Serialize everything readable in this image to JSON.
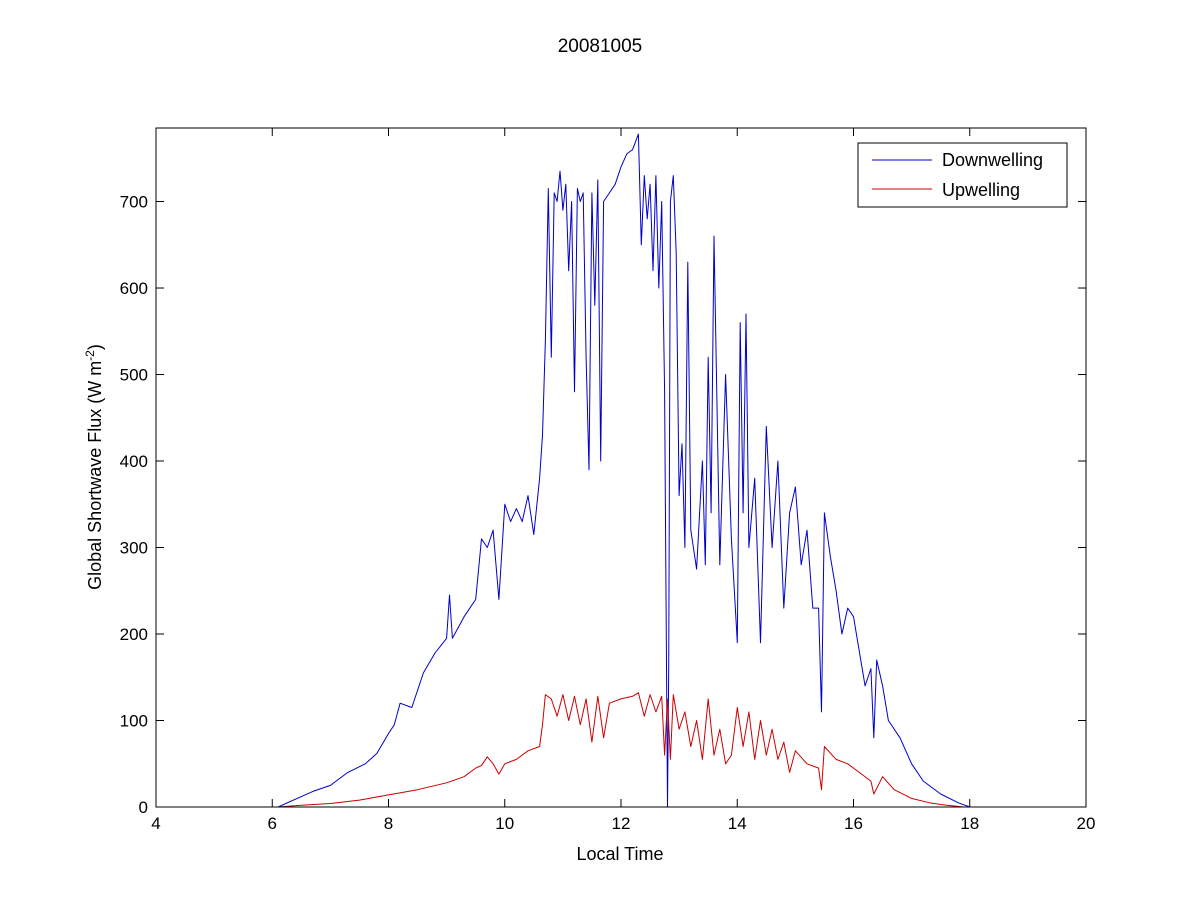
{
  "chart_data": {
    "type": "line",
    "title": "20081005",
    "xlabel": "Local Time",
    "ylabel": "Global Shortwave Flux (W m",
    "ylabel_superscript": "-2",
    "ylabel_close": ")",
    "xlim": [
      4,
      20
    ],
    "ylim": [
      0,
      785
    ],
    "xticks": [
      "4",
      "6",
      "8",
      "10",
      "12",
      "14",
      "16",
      "18",
      "20"
    ],
    "yticks": [
      "0",
      "100",
      "200",
      "300",
      "400",
      "500",
      "600",
      "700"
    ],
    "grid": false,
    "legend_position": "top-right",
    "series": [
      {
        "name": "Downwelling",
        "color": "#0000cc",
        "x": [
          6.1,
          6.5,
          6.7,
          7.0,
          7.3,
          7.6,
          7.8,
          8.0,
          8.1,
          8.2,
          8.4,
          8.6,
          8.8,
          9.0,
          9.05,
          9.1,
          9.3,
          9.5,
          9.6,
          9.7,
          9.8,
          9.9,
          10.0,
          10.1,
          10.2,
          10.3,
          10.4,
          10.5,
          10.6,
          10.65,
          10.7,
          10.75,
          10.8,
          10.85,
          10.9,
          10.95,
          11.0,
          11.05,
          11.1,
          11.15,
          11.2,
          11.25,
          11.3,
          11.35,
          11.4,
          11.45,
          11.5,
          11.55,
          11.6,
          11.65,
          11.7,
          11.8,
          11.9,
          12.0,
          12.1,
          12.2,
          12.3,
          12.35,
          12.4,
          12.45,
          12.5,
          12.55,
          12.6,
          12.65,
          12.7,
          12.75,
          12.8,
          12.82,
          12.85,
          12.9,
          12.95,
          13.0,
          13.05,
          13.1,
          13.15,
          13.2,
          13.3,
          13.4,
          13.45,
          13.5,
          13.55,
          13.6,
          13.7,
          13.8,
          13.9,
          14.0,
          14.05,
          14.1,
          14.15,
          14.2,
          14.3,
          14.4,
          14.5,
          14.6,
          14.7,
          14.8,
          14.9,
          15.0,
          15.1,
          15.2,
          15.3,
          15.4,
          15.45,
          15.5,
          15.6,
          15.7,
          15.8,
          15.9,
          16.0,
          16.2,
          16.3,
          16.35,
          16.4,
          16.5,
          16.6,
          16.8,
          17.0,
          17.2,
          17.5,
          17.8,
          18.0
        ],
        "values": [
          0,
          12,
          18,
          25,
          40,
          50,
          62,
          85,
          95,
          120,
          115,
          155,
          178,
          195,
          245,
          195,
          220,
          240,
          310,
          300,
          320,
          240,
          350,
          330,
          345,
          330,
          360,
          315,
          380,
          430,
          540,
          715,
          520,
          710,
          700,
          735,
          690,
          720,
          620,
          700,
          480,
          715,
          700,
          710,
          520,
          390,
          710,
          580,
          725,
          400,
          700,
          710,
          720,
          740,
          755,
          760,
          778,
          650,
          730,
          680,
          720,
          620,
          730,
          600,
          700,
          480,
          0,
          160,
          700,
          730,
          640,
          360,
          420,
          300,
          630,
          320,
          275,
          400,
          280,
          520,
          340,
          660,
          280,
          500,
          310,
          190,
          560,
          340,
          570,
          300,
          380,
          190,
          440,
          300,
          400,
          230,
          340,
          370,
          280,
          320,
          230,
          230,
          110,
          340,
          290,
          250,
          200,
          230,
          220,
          140,
          160,
          80,
          170,
          140,
          100,
          80,
          50,
          30,
          15,
          5,
          0
        ]
      },
      {
        "name": "Upwelling",
        "color": "#cc0000",
        "x": [
          6.1,
          6.5,
          7.0,
          7.5,
          8.0,
          8.5,
          9.0,
          9.3,
          9.5,
          9.6,
          9.7,
          9.8,
          9.9,
          10.0,
          10.2,
          10.4,
          10.6,
          10.65,
          10.7,
          10.8,
          10.9,
          11.0,
          11.1,
          11.2,
          11.3,
          11.4,
          11.5,
          11.6,
          11.7,
          11.8,
          12.0,
          12.2,
          12.3,
          12.4,
          12.5,
          12.6,
          12.7,
          12.75,
          12.8,
          12.85,
          12.9,
          13.0,
          13.1,
          13.2,
          13.3,
          13.4,
          13.5,
          13.6,
          13.7,
          13.8,
          13.9,
          14.0,
          14.1,
          14.2,
          14.3,
          14.4,
          14.5,
          14.6,
          14.7,
          14.8,
          14.9,
          15.0,
          15.2,
          15.4,
          15.45,
          15.5,
          15.7,
          15.9,
          16.1,
          16.3,
          16.35,
          16.5,
          16.7,
          17.0,
          17.3,
          17.6,
          17.9,
          18.0
        ],
        "values": [
          0,
          2,
          4,
          8,
          14,
          20,
          28,
          35,
          45,
          48,
          58,
          50,
          38,
          50,
          55,
          65,
          70,
          95,
          130,
          125,
          105,
          130,
          100,
          128,
          95,
          125,
          75,
          128,
          80,
          120,
          125,
          128,
          132,
          105,
          130,
          110,
          128,
          60,
          125,
          55,
          130,
          90,
          110,
          70,
          100,
          55,
          125,
          60,
          90,
          50,
          60,
          115,
          70,
          110,
          55,
          100,
          60,
          90,
          55,
          75,
          40,
          65,
          50,
          45,
          20,
          70,
          55,
          50,
          40,
          30,
          15,
          35,
          20,
          10,
          5,
          2,
          0,
          0
        ]
      }
    ]
  }
}
